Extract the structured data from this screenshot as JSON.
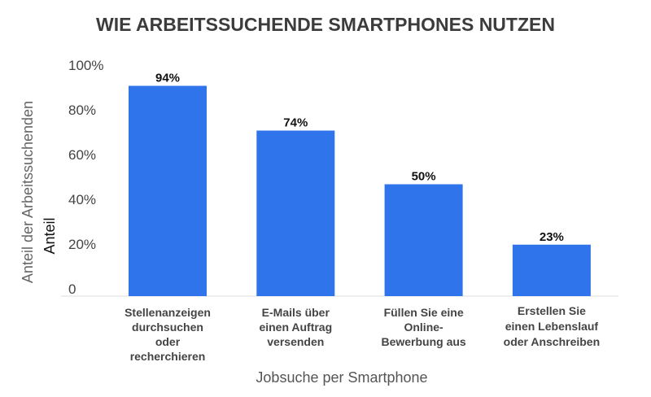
{
  "chart_data": {
    "type": "bar",
    "title": "WIE ARBEITSSUCHENDE SMARTPHONES NUTZEN",
    "xlabel": "Jobsuche per Smartphone",
    "ylabel": "Anteil der Arbeitssuchenden",
    "ylabel_overlay": "Anteil",
    "categories": [
      [
        "Stellenanzeigen",
        "durchsuchen",
        "oder",
        "recherchieren"
      ],
      [
        "E-Mails über",
        "einen Auftrag",
        "versenden"
      ],
      [
        "Füllen Sie eine",
        "Online-",
        "Bewerbung aus"
      ],
      [
        "Erstellen Sie",
        "einen Lebenslauf",
        "oder Anschreiben"
      ]
    ],
    "values": [
      94,
      74,
      50,
      23
    ],
    "data_labels": [
      "94%",
      "74%",
      "50%",
      "23%"
    ],
    "yticks": [
      "0",
      "20%",
      "40%",
      "60%",
      "80%",
      "100%"
    ],
    "ytick_values": [
      0,
      20,
      40,
      60,
      80,
      100
    ],
    "ylim": [
      0,
      100
    ],
    "grid": false,
    "bar_color": "#2f74eb"
  }
}
